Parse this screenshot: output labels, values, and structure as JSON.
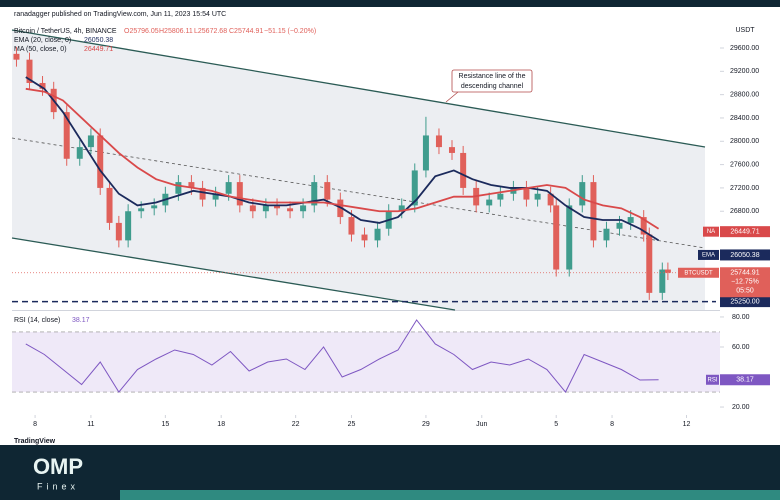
{
  "header": {
    "publisher": "ranadagger published on TradingView.com, Jun 11, 2023 15:54 UTC",
    "watermark": "TradingView"
  },
  "brand": {
    "name": "OMP",
    "sub": "Finex"
  },
  "chart_data": [
    {
      "type": "candlestick",
      "title": "Bitcoin / TetherUS, 4h, BINANCE",
      "ohlc_legend": [
        "O25796.05",
        "H25806.11",
        "L25672.68",
        "C25744.91",
        "−51.15 (−0.20%)"
      ],
      "currency": "USDT",
      "x": [
        7,
        7.7,
        8.4,
        9,
        9.7,
        10.4,
        11,
        11.5,
        12,
        12.5,
        13,
        13.7,
        14.4,
        15,
        15.7,
        16.4,
        17,
        17.7,
        18.4,
        19,
        19.7,
        20.4,
        21,
        21.7,
        22.4,
        23,
        23.7,
        24.4,
        25,
        25.7,
        26.4,
        27,
        27.7,
        28.4,
        29,
        29.7,
        30.4,
        31,
        31.7,
        32.4,
        33,
        33.7,
        34.4,
        35,
        35.7,
        36,
        36.7,
        37.4,
        38,
        38.7,
        39.4,
        40,
        40.7,
        41,
        41.7,
        42
      ],
      "open": [
        29500,
        29400,
        29000,
        28900,
        28500,
        27700,
        27900,
        28100,
        27200,
        26600,
        26300,
        26800,
        26850,
        26900,
        27100,
        27300,
        27200,
        27000,
        27100,
        27300,
        26900,
        26800,
        26900,
        26850,
        26800,
        26900,
        27300,
        27000,
        26700,
        26400,
        26300,
        26500,
        26800,
        26900,
        27500,
        28100,
        27900,
        27800,
        27200,
        26900,
        27000,
        27100,
        27200,
        27000,
        27100,
        26900,
        25800,
        26900,
        27300,
        26300,
        26500,
        26600,
        26700,
        26400,
        25400,
        25800
      ],
      "high": [
        29620,
        29520,
        29120,
        29020,
        28620,
        28020,
        28220,
        28220,
        27320,
        26720,
        26920,
        26970,
        27020,
        27220,
        27420,
        27420,
        27320,
        27220,
        27420,
        27420,
        27020,
        27020,
        27020,
        26970,
        27020,
        27420,
        27420,
        27120,
        26820,
        26520,
        26620,
        26920,
        27020,
        27620,
        28420,
        28220,
        28020,
        27920,
        27320,
        27120,
        27220,
        27320,
        27320,
        27220,
        27220,
        27020,
        27020,
        27420,
        27420,
        26620,
        26720,
        26820,
        26820,
        26520,
        25920,
        25920
      ],
      "low": [
        29280,
        28880,
        28780,
        28380,
        27580,
        27580,
        27780,
        27080,
        26480,
        26180,
        26180,
        26680,
        26730,
        26780,
        26980,
        27080,
        26880,
        26880,
        26980,
        26780,
        26680,
        26680,
        26730,
        26680,
        26680,
        26780,
        26880,
        26580,
        26280,
        26180,
        26180,
        26380,
        26680,
        26780,
        27380,
        27780,
        27680,
        27080,
        26780,
        26780,
        26880,
        26980,
        26880,
        26880,
        26780,
        25680,
        25680,
        26780,
        26180,
        26180,
        26380,
        26480,
        26280,
        25280,
        25280,
        25620
      ],
      "close": [
        29400,
        29000,
        28900,
        28500,
        27700,
        27900,
        28100,
        27200,
        26600,
        26300,
        26800,
        26850,
        26900,
        27100,
        27300,
        27200,
        27000,
        27100,
        27300,
        26900,
        26800,
        26900,
        26850,
        26800,
        26900,
        27300,
        27000,
        26700,
        26400,
        26300,
        26500,
        26800,
        26900,
        27500,
        28100,
        27900,
        27800,
        27200,
        26900,
        27000,
        27100,
        27200,
        27000,
        27100,
        26900,
        25800,
        26900,
        27300,
        26300,
        26500,
        26600,
        26700,
        26400,
        25400,
        25800,
        25745
      ],
      "up_color": "#3f9c8d",
      "down_color": "#e0605a",
      "xlim": [
        6.76,
        44.8
      ],
      "xticks": [
        8,
        11,
        15,
        18,
        22,
        25,
        29,
        {
          "value": 32,
          "label": "Jun"
        },
        {
          "value": 36,
          "label": "5"
        },
        {
          "value": 39,
          "label": "8"
        },
        {
          "value": 43,
          "label": "12"
        }
      ],
      "ylim": [
        25106,
        30046
      ],
      "yticks": [
        {
          "value": 29600,
          "label": "29600.00"
        },
        {
          "value": 29200,
          "label": "29200.00"
        },
        {
          "value": 28800,
          "label": "28800.00"
        },
        {
          "value": 28400,
          "label": "28400.00"
        },
        {
          "value": 28000,
          "label": "28000.00"
        },
        {
          "value": 27600,
          "label": "27600.00"
        },
        {
          "value": 27200,
          "label": "27200.00"
        },
        {
          "value": 26800,
          "label": "26800.00"
        }
      ],
      "overlays": [
        {
          "name": "EMA (20, close, 0)",
          "last": 26050.38,
          "color": "#1b2a5c",
          "x": [
            7.5,
            8.5,
            9.5,
            10.5,
            11.5,
            12.5,
            13.5,
            14.5,
            15.5,
            16.5,
            17.5,
            18.5,
            19.5,
            20.5,
            21.5,
            22.5,
            23.5,
            24.5,
            25.5,
            26.5,
            27.5,
            28.5,
            29.5,
            30.5,
            31.5,
            32.5,
            33.5,
            34.5,
            35.5,
            36.5,
            37.5,
            38.5,
            39.5,
            40.5,
            41.5
          ],
          "values": [
            29100,
            28900,
            28500,
            28000,
            27500,
            27100,
            26900,
            26950,
            27050,
            27150,
            27100,
            27050,
            26950,
            26900,
            26900,
            26950,
            27000,
            26850,
            26650,
            26600,
            26700,
            27000,
            27400,
            27500,
            27350,
            27250,
            27200,
            27200,
            27150,
            26900,
            26700,
            26650,
            26650,
            26500,
            26300
          ]
        },
        {
          "name": "MA (50, close, 0)",
          "last": 26449.71,
          "color": "#d9494a",
          "x": [
            7.5,
            8.5,
            9.5,
            10.5,
            11.5,
            12.5,
            13.5,
            14.5,
            15.5,
            16.5,
            17.5,
            18.5,
            19.5,
            20.5,
            21.5,
            22.5,
            23.5,
            24.5,
            25.5,
            26.5,
            27.5,
            28.5,
            29.5,
            30.5,
            31.5,
            32.5,
            33.5,
            34.5,
            35.5,
            36.5,
            37.5,
            38.5,
            39.5,
            40.5,
            41.5
          ],
          "values": [
            28900,
            28850,
            28700,
            28400,
            28100,
            27800,
            27550,
            27350,
            27250,
            27200,
            27150,
            27050,
            27000,
            26950,
            26950,
            26950,
            26950,
            26900,
            26850,
            26800,
            26800,
            26850,
            26950,
            27050,
            27050,
            27100,
            27150,
            27200,
            27250,
            27200,
            27000,
            26900,
            26850,
            26700,
            26500
          ]
        }
      ],
      "price_badges": [
        {
          "tag": "NA",
          "value": 26449.71,
          "color": "#d9494a"
        },
        {
          "tag": "EMA",
          "value": 26050.38,
          "color": "#1b2a5c"
        },
        {
          "tag": "BTCUSDT",
          "value": 25744.91,
          "color": "#e0605a",
          "change": "−12.75%",
          "countdown": "05:50"
        }
      ],
      "support": {
        "value": 25250,
        "label": "25250.00",
        "color": "#1b2a5c"
      },
      "annotation": [
        "Resistance line of the",
        "descending channel"
      ]
    },
    {
      "type": "line",
      "title": "RSI (14, close)",
      "last": 38.17,
      "badge_tag": "RSI",
      "color": "#7e57c2",
      "x": [
        7.5,
        8.5,
        9.5,
        10.5,
        11.5,
        12.5,
        13.5,
        14.5,
        15.5,
        16.5,
        17.5,
        18.5,
        19.5,
        20.5,
        21.5,
        22.5,
        23.5,
        24.5,
        25.5,
        26.5,
        27.5,
        28.5,
        29.5,
        30.5,
        31.5,
        32.5,
        33.5,
        34.5,
        35.5,
        36.5,
        37.5,
        38.5,
        39.5,
        40.5,
        41.5
      ],
      "values": [
        62,
        55,
        45,
        35,
        50,
        30,
        45,
        52,
        58,
        55,
        48,
        57,
        44,
        50,
        52,
        45,
        60,
        40,
        45,
        52,
        58,
        78,
        62,
        55,
        45,
        50,
        48,
        52,
        45,
        30,
        55,
        50,
        45,
        38,
        38.17
      ],
      "band": [
        30,
        70
      ],
      "ylim": [
        14.7,
        83.3
      ],
      "yticks": [
        {
          "value": 80,
          "label": "80.00"
        },
        {
          "value": 60,
          "label": "60.00"
        },
        {
          "value": 20,
          "label": "20.00"
        }
      ]
    }
  ]
}
